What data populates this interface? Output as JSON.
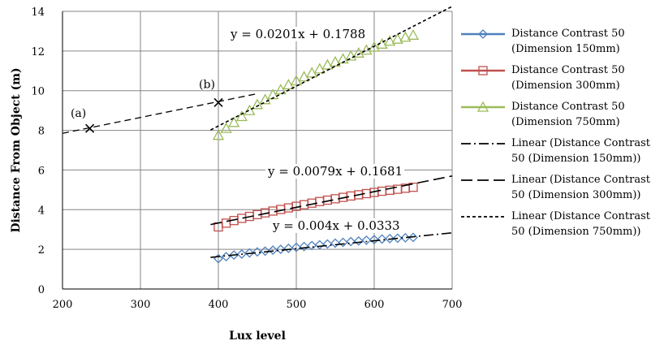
{
  "chart_data": {
    "type": "scatter",
    "title": "",
    "xlabel": "Lux level",
    "ylabel": "Distance From Object (m)",
    "xlim": [
      200,
      700
    ],
    "ylim": [
      0,
      14
    ],
    "xticks": [
      200,
      300,
      400,
      500,
      600,
      700
    ],
    "yticks": [
      0,
      2,
      4,
      6,
      8,
      10,
      12,
      14
    ],
    "grid": true,
    "legend_position": "right",
    "series": [
      {
        "name": "Distance Contrast 50 (Dimension 150mm)",
        "color": "#4f81bd",
        "marker": "diamond",
        "x": [
          400,
          410,
          420,
          430,
          440,
          450,
          460,
          470,
          480,
          490,
          500,
          510,
          520,
          530,
          540,
          550,
          560,
          570,
          580,
          590,
          600,
          610,
          620,
          630,
          640,
          650
        ],
        "y": [
          1.53,
          1.63,
          1.71,
          1.76,
          1.82,
          1.87,
          1.91,
          1.96,
          2.0,
          2.05,
          2.1,
          2.14,
          2.19,
          2.23,
          2.27,
          2.31,
          2.35,
          2.39,
          2.42,
          2.46,
          2.49,
          2.52,
          2.54,
          2.56,
          2.58,
          2.6
        ]
      },
      {
        "name": "Distance Contrast 50 (Dimension 300mm)",
        "color": "#c0504d",
        "marker": "square",
        "x": [
          400,
          410,
          420,
          430,
          440,
          450,
          460,
          470,
          480,
          490,
          500,
          510,
          520,
          530,
          540,
          550,
          560,
          570,
          580,
          590,
          600,
          610,
          620,
          630,
          640,
          650
        ],
        "y": [
          3.13,
          3.32,
          3.45,
          3.56,
          3.66,
          3.75,
          3.84,
          3.93,
          4.01,
          4.09,
          4.17,
          4.25,
          4.33,
          4.41,
          4.48,
          4.55,
          4.62,
          4.69,
          4.75,
          4.81,
          4.87,
          4.93,
          4.98,
          5.03,
          5.08,
          5.13
        ]
      },
      {
        "name": "Distance Contrast 50 (Dimension 750mm)",
        "color": "#9bbb59",
        "marker": "triangle",
        "x": [
          400,
          410,
          420,
          430,
          440,
          450,
          460,
          470,
          480,
          490,
          500,
          510,
          520,
          530,
          540,
          550,
          560,
          570,
          580,
          590,
          600,
          610,
          620,
          630,
          640,
          650
        ],
        "y": [
          7.75,
          8.1,
          8.4,
          8.7,
          9.0,
          9.3,
          9.55,
          9.8,
          10.05,
          10.3,
          10.5,
          10.7,
          10.9,
          11.1,
          11.3,
          11.45,
          11.6,
          11.75,
          11.9,
          12.05,
          12.2,
          12.35,
          12.5,
          12.6,
          12.7,
          12.8
        ]
      }
    ],
    "trendlines": [
      {
        "name": "Linear (Distance Contrast 50 (Dimension 150mm))",
        "style": "dash-dot",
        "slope": 0.004,
        "intercept": 0.0333,
        "x_range": [
          390,
          700
        ],
        "equation": "y = 0.004x + 0.0333"
      },
      {
        "name": "Linear (Distance Contrast 50 (Dimension 300mm))",
        "style": "long-dash",
        "slope": 0.0079,
        "intercept": 0.1681,
        "x_range": [
          390,
          700
        ],
        "equation": "y = 0.0079x + 0.1681"
      },
      {
        "name": "Linear (Distance Contrast 50 (Dimension 750mm))",
        "style": "short-dash",
        "slope": 0.0201,
        "intercept": 0.1788,
        "x_range": [
          390,
          700
        ],
        "equation": "y = 0.0201x + 0.1788"
      }
    ],
    "extra_line": {
      "x": [
        200,
        450
      ],
      "y": [
        7.85,
        9.85
      ]
    },
    "annotations": [
      {
        "label": "(a)",
        "x": 235,
        "y": 8.1
      },
      {
        "label": "(b)",
        "x": 400,
        "y": 9.4
      }
    ]
  }
}
